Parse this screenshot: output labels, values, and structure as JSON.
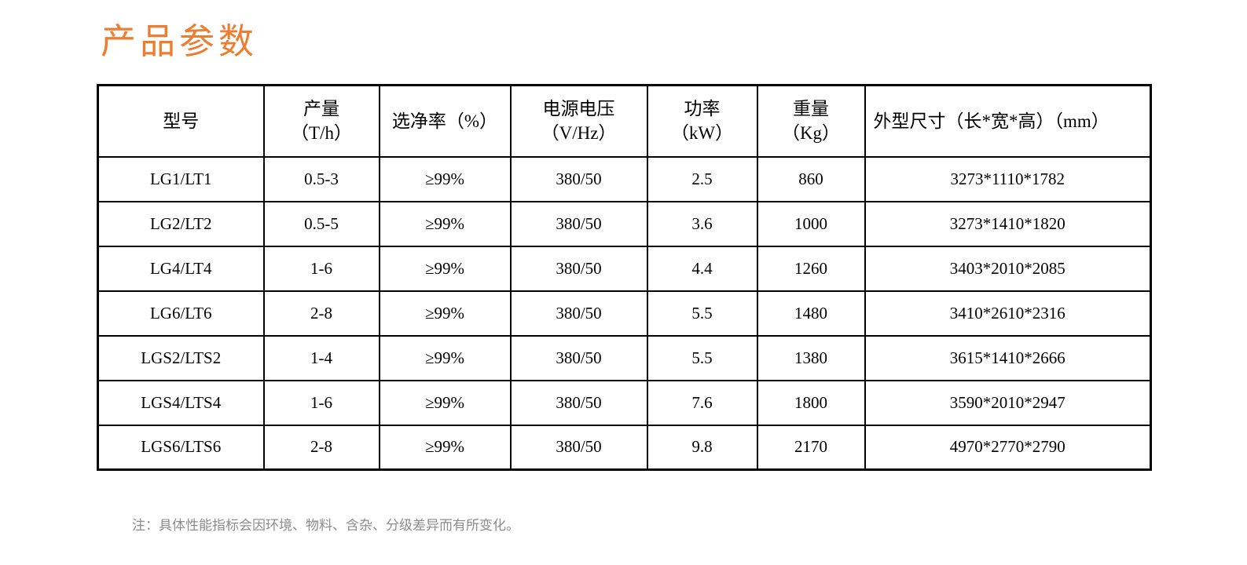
{
  "page": {
    "title": "产品参数",
    "title_color": "#ED7D31",
    "note": "注：具体性能指标会因环境、物料、含杂、分级差异而有所变化。"
  },
  "table": {
    "border_color": "#000000",
    "columns": [
      {
        "key": "model",
        "align": "center",
        "label_lines": [
          "型号"
        ]
      },
      {
        "key": "output",
        "align": "center",
        "label_lines": [
          "产量",
          "（T/h）"
        ]
      },
      {
        "key": "purity",
        "align": "center",
        "label_lines": [
          "选净率（%）"
        ]
      },
      {
        "key": "voltage",
        "align": "center",
        "label_lines": [
          "电源电压",
          "（V/Hz）"
        ]
      },
      {
        "key": "power",
        "align": "center",
        "label_lines": [
          "功率",
          "（kW）"
        ]
      },
      {
        "key": "weight",
        "align": "center",
        "label_lines": [
          "重量",
          "（Kg）"
        ]
      },
      {
        "key": "dimensions",
        "align": "left",
        "label_lines": [
          "外型尺寸（长*宽*高）（mm）"
        ]
      }
    ],
    "rows": [
      [
        "LG1/LT1",
        "0.5-3",
        "≥99%",
        "380/50",
        "2.5",
        "860",
        "3273*1110*1782"
      ],
      [
        "LG2/LT2",
        "0.5-5",
        "≥99%",
        "380/50",
        "3.6",
        "1000",
        "3273*1410*1820"
      ],
      [
        "LG4/LT4",
        "1-6",
        "≥99%",
        "380/50",
        "4.4",
        "1260",
        "3403*2010*2085"
      ],
      [
        "LG6/LT6",
        "2-8",
        "≥99%",
        "380/50",
        "5.5",
        "1480",
        "3410*2610*2316"
      ],
      [
        "LGS2/LTS2",
        "1-4",
        "≥99%",
        "380/50",
        "5.5",
        "1380",
        "3615*1410*2666"
      ],
      [
        "LGS4/LTS4",
        "1-6",
        "≥99%",
        "380/50",
        "7.6",
        "1800",
        "3590*2010*2947"
      ],
      [
        "LGS6/LTS6",
        "2-8",
        "≥99%",
        "380/50",
        "9.8",
        "2170",
        "4970*2770*2790"
      ]
    ]
  }
}
